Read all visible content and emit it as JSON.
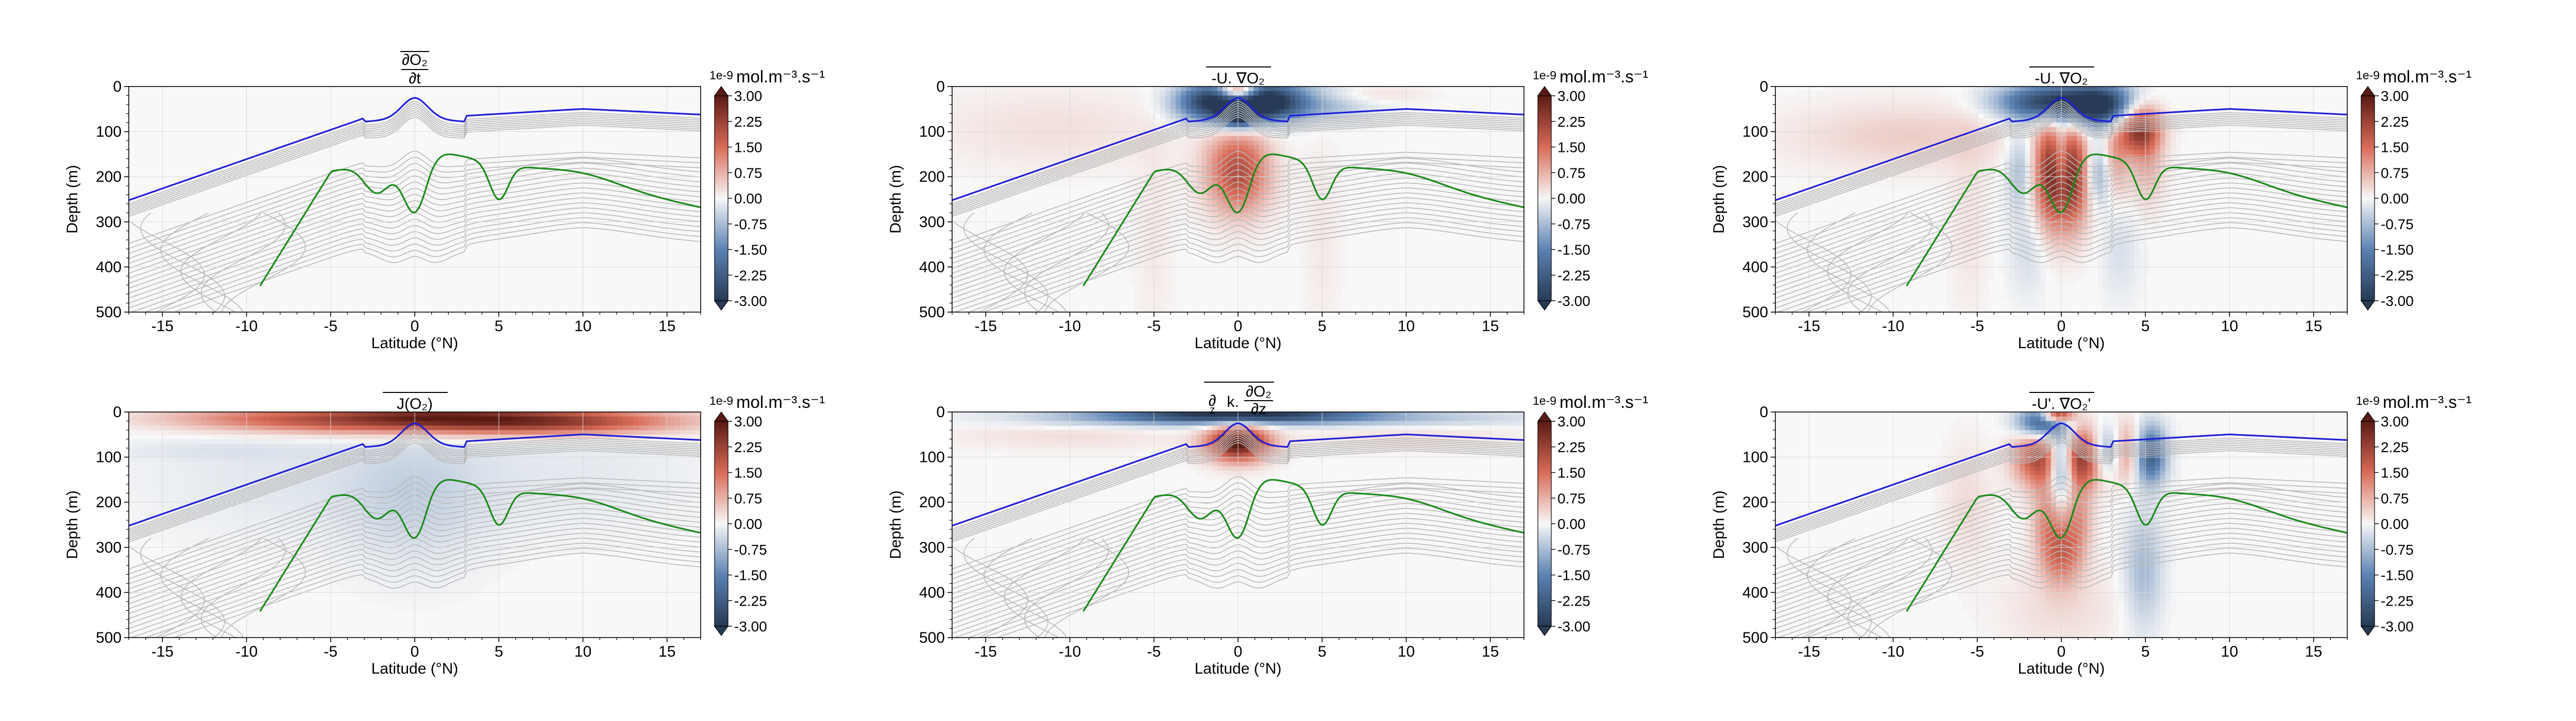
{
  "figure": {
    "colormap": {
      "neg_extreme": "#273a55",
      "neg": "#5b82b3",
      "neutral": "#f7f7f7",
      "pos": "#d96b58",
      "pos_extreme": "#5a1a14"
    },
    "contour_colors": {
      "oxycline": "#1f1fd6",
      "omz": "#1a8a1a",
      "isopleths": "#b8b8b8"
    }
  },
  "chart_data": [
    {
      "id": "dO2dt",
      "type": "heatmap",
      "row": 0,
      "col": 0,
      "title_parts": {
        "prefix": "",
        "top": "∂O₂",
        "bottom": "∂t",
        "overline": true
      },
      "xlabel": "Latitude (°N)",
      "ylabel": "Depth (m)",
      "xlim": [
        -17,
        17
      ],
      "ylim": [
        500,
        0
      ],
      "xticks": [
        "-15",
        "-10",
        "-5",
        "0",
        "5",
        "10",
        "15"
      ],
      "yticks": [
        "0",
        "100",
        "200",
        "300",
        "400",
        "500"
      ],
      "grid": true,
      "colorbar": {
        "label": "mol.m⁻³.s⁻¹",
        "exponent": "1e-9",
        "vmin": -3.0,
        "vmax": 3.0,
        "ticks": [
          "3.00",
          "2.25",
          "1.50",
          "0.75",
          "0.00",
          "-0.75",
          "-1.50",
          "-2.25",
          "-3.00"
        ]
      },
      "field_blobs": [
        {
          "x": 0,
          "y": 5,
          "sx": 3,
          "sy": 4,
          "v": 0.03
        }
      ]
    },
    {
      "id": "mean_adv",
      "type": "heatmap",
      "row": 0,
      "col": 1,
      "title_parts": {
        "prefix": "-",
        "text": "U. ∇O₂",
        "overline": true
      },
      "xlabel": "Latitude (°N)",
      "ylabel": "",
      "xlim": [
        -17,
        17
      ],
      "ylim": [
        500,
        0
      ],
      "xticks": [
        "-15",
        "-10",
        "-5",
        "0",
        "5",
        "10",
        "15"
      ],
      "yticks": [
        "0",
        "100",
        "200",
        "300",
        "400",
        "500"
      ],
      "grid": true,
      "colorbar": {
        "label": "mol.m⁻³.s⁻¹",
        "exponent": "1e-9",
        "vmin": -3.0,
        "vmax": 3.0,
        "ticks": [
          "3.00",
          "2.25",
          "1.50",
          "0.75",
          "0.00",
          "-0.75",
          "-1.50",
          "-2.25",
          "-3.00"
        ]
      },
      "field_blobs": [
        {
          "x": 0,
          "y": 10,
          "sx": 0.8,
          "sy": 15,
          "v": 3.0
        },
        {
          "x": -1.5,
          "y": 35,
          "sx": 1.5,
          "sy": 30,
          "v": -3.0
        },
        {
          "x": 1.5,
          "y": 35,
          "sx": 1.5,
          "sy": 30,
          "v": -3.0
        },
        {
          "x": 0,
          "y": 70,
          "sx": 0.8,
          "sy": 18,
          "v": -2.0
        },
        {
          "x": 0,
          "y": 190,
          "sx": 1.3,
          "sy": 65,
          "v": 2.0
        },
        {
          "x": 4.2,
          "y": 30,
          "sx": 2.5,
          "sy": 30,
          "v": -1.2
        },
        {
          "x": 6.5,
          "y": 18,
          "sx": 2.5,
          "sy": 16,
          "v": 0.6
        },
        {
          "x": -11,
          "y": 95,
          "sx": 5,
          "sy": 60,
          "v": 0.25
        },
        {
          "x": -5,
          "y": 330,
          "sx": 0.8,
          "sy": 170,
          "v": 0.15
        },
        {
          "x": 5,
          "y": 330,
          "sx": 0.8,
          "sy": 170,
          "v": 0.15
        }
      ]
    },
    {
      "id": "eddy_mean_adv",
      "type": "heatmap",
      "row": 0,
      "col": 2,
      "title_parts": {
        "prefix": "-",
        "text": "U. ∇O₂",
        "overline": true
      },
      "xlabel": "Latitude (°N)",
      "ylabel": "",
      "xlim": [
        -17,
        17
      ],
      "ylim": [
        500,
        0
      ],
      "xticks": [
        "-15",
        "-10",
        "-5",
        "0",
        "5",
        "10",
        "15"
      ],
      "yticks": [
        "0",
        "100",
        "200",
        "300",
        "400",
        "500"
      ],
      "grid": true,
      "colorbar": {
        "label": "mol.m⁻³.s⁻¹",
        "exponent": "1e-9",
        "vmin": -3.0,
        "vmax": 3.0,
        "ticks": [
          "3.00",
          "2.25",
          "1.50",
          "0.75",
          "0.00",
          "-0.75",
          "-1.50",
          "-2.25",
          "-3.00"
        ]
      },
      "field_blobs": [
        {
          "x": -0.5,
          "y": 35,
          "sx": 2.2,
          "sy": 28,
          "v": -3.0
        },
        {
          "x": 2.5,
          "y": 45,
          "sx": 1.5,
          "sy": 35,
          "v": -2.5
        },
        {
          "x": 4.6,
          "y": 90,
          "sx": 0.9,
          "sy": 40,
          "v": 2.6
        },
        {
          "x": -0.6,
          "y": 200,
          "sx": 0.8,
          "sy": 80,
          "v": 2.2
        },
        {
          "x": 0.6,
          "y": 200,
          "sx": 0.8,
          "sy": 80,
          "v": 2.2
        },
        {
          "x": 0,
          "y": 170,
          "sx": 0.35,
          "sy": 60,
          "v": -1.6
        },
        {
          "x": 2.3,
          "y": 190,
          "sx": 0.6,
          "sy": 50,
          "v": -1.3
        },
        {
          "x": 3.1,
          "y": 170,
          "sx": 0.6,
          "sy": 60,
          "v": 1.1
        },
        {
          "x": -2.4,
          "y": 180,
          "sx": 0.6,
          "sy": 60,
          "v": -0.8
        },
        {
          "x": 5.1,
          "y": 180,
          "sx": 0.7,
          "sy": 60,
          "v": 0.7
        },
        {
          "x": -9,
          "y": 110,
          "sx": 5,
          "sy": 50,
          "v": 0.45
        },
        {
          "x": -2,
          "y": 350,
          "sx": 0.8,
          "sy": 80,
          "v": -0.35
        },
        {
          "x": 3.5,
          "y": 360,
          "sx": 0.8,
          "sy": 80,
          "v": -0.3
        },
        {
          "x": -5.5,
          "y": 300,
          "sx": 0.8,
          "sy": 150,
          "v": 0.2
        }
      ]
    },
    {
      "id": "sources_sinks",
      "type": "heatmap",
      "row": 1,
      "col": 0,
      "title_parts": {
        "prefix": "",
        "text": "J(O₂)",
        "overline": true
      },
      "xlabel": "Latitude (°N)",
      "ylabel": "Depth (m)",
      "xlim": [
        -17,
        17
      ],
      "ylim": [
        500,
        0
      ],
      "xticks": [
        "-15",
        "-10",
        "-5",
        "0",
        "5",
        "10",
        "15"
      ],
      "yticks": [
        "0",
        "100",
        "200",
        "300",
        "400",
        "500"
      ],
      "grid": true,
      "colorbar": {
        "label": "mol.m⁻³.s⁻¹",
        "exponent": "1e-9",
        "vmin": -3.0,
        "vmax": 3.0,
        "ticks": [
          "3.00",
          "2.25",
          "1.50",
          "0.75",
          "0.00",
          "-0.75",
          "-1.50",
          "-2.25",
          "-3.00"
        ]
      },
      "field_blobs": [
        {
          "x": 1,
          "y": 22,
          "sx": 7,
          "sy": 20,
          "v": 2.2
        },
        {
          "x": 9.5,
          "y": 20,
          "sx": 5,
          "sy": 20,
          "v": 1.4
        },
        {
          "x": -9,
          "y": 12,
          "sx": 5,
          "sy": 18,
          "v": 0.9
        },
        {
          "x": 1,
          "y": 5,
          "sx": 4,
          "sy": 12,
          "v": 1.0
        },
        {
          "x": 0,
          "y": 190,
          "sx": 3,
          "sy": 110,
          "v": -0.4
        },
        {
          "x": -8,
          "y": 150,
          "sx": 6,
          "sy": 90,
          "v": -0.2
        },
        {
          "x": 9,
          "y": 140,
          "sx": 6,
          "sy": 90,
          "v": -0.18
        },
        {
          "x": -12,
          "y": 85,
          "sx": 5,
          "sy": 15,
          "v": -0.15
        }
      ]
    },
    {
      "id": "vertical_mixing",
      "type": "heatmap",
      "row": 1,
      "col": 1,
      "title_parts": {
        "prefix": "",
        "mix": true,
        "overline": true
      },
      "xlabel": "Latitude (°N)",
      "ylabel": "",
      "xlim": [
        -17,
        17
      ],
      "ylim": [
        500,
        0
      ],
      "xticks": [
        "-15",
        "-10",
        "-5",
        "0",
        "5",
        "10",
        "15"
      ],
      "yticks": [
        "0",
        "100",
        "200",
        "300",
        "400",
        "500"
      ],
      "grid": true,
      "colorbar": {
        "label": "mol.m⁻³.s⁻¹",
        "exponent": "1e-9",
        "vmin": -3.0,
        "vmax": 3.0,
        "ticks": [
          "3.00",
          "2.25",
          "1.50",
          "0.75",
          "0.00",
          "-0.75",
          "-1.50",
          "-2.25",
          "-3.00"
        ]
      },
      "field_blobs": [
        {
          "x": 0,
          "y": 5,
          "sx": 5,
          "sy": 12,
          "v": -2.6
        },
        {
          "x": 0,
          "y": 70,
          "sx": 1.3,
          "sy": 28,
          "v": 3.0
        },
        {
          "x": -6,
          "y": 15,
          "sx": 6,
          "sy": 15,
          "v": -0.8
        },
        {
          "x": 8,
          "y": 15,
          "sx": 7,
          "sy": 15,
          "v": -0.8
        },
        {
          "x": -10,
          "y": 45,
          "sx": 5,
          "sy": 25,
          "v": 0.3
        },
        {
          "x": 10,
          "y": 45,
          "sx": 5,
          "sy": 25,
          "v": 0.3
        }
      ]
    },
    {
      "id": "eddy_adv",
      "type": "heatmap",
      "row": 1,
      "col": 2,
      "title_parts": {
        "prefix": "-",
        "text": "U'. ∇O₂'",
        "overline": true
      },
      "xlabel": "Latitude (°N)",
      "ylabel": "",
      "xlim": [
        -17,
        17
      ],
      "ylim": [
        500,
        0
      ],
      "xticks": [
        "-15",
        "-10",
        "-5",
        "0",
        "5",
        "10",
        "15"
      ],
      "yticks": [
        "0",
        "100",
        "200",
        "300",
        "400",
        "500"
      ],
      "grid": true,
      "colorbar": {
        "label": "mol.m⁻³.s⁻¹",
        "exponent": "1e-9",
        "vmin": -3.0,
        "vmax": 3.0,
        "ticks": [
          "3.00",
          "2.25",
          "1.50",
          "0.75",
          "0.00",
          "-0.75",
          "-1.50",
          "-2.25",
          "-3.00"
        ]
      },
      "field_blobs": [
        {
          "x": -1.2,
          "y": 25,
          "sx": 1.0,
          "sy": 25,
          "v": -2.4
        },
        {
          "x": -0.2,
          "y": 8,
          "sx": 0.6,
          "sy": 10,
          "v": 3.0
        },
        {
          "x": 0,
          "y": 110,
          "sx": 0.5,
          "sy": 55,
          "v": -2.2
        },
        {
          "x": 1.4,
          "y": 100,
          "sx": 1.0,
          "sy": 45,
          "v": 2.6
        },
        {
          "x": -1.4,
          "y": 100,
          "sx": 1.0,
          "sy": 45,
          "v": 2.0
        },
        {
          "x": 2.7,
          "y": 90,
          "sx": 0.8,
          "sy": 40,
          "v": -2.0
        },
        {
          "x": 3.9,
          "y": 90,
          "sx": 0.7,
          "sy": 45,
          "v": 1.7
        },
        {
          "x": 5.2,
          "y": 95,
          "sx": 0.7,
          "sy": 45,
          "v": -2.4
        },
        {
          "x": 0,
          "y": 310,
          "sx": 0.8,
          "sy": 50,
          "v": 1.5
        },
        {
          "x": -0.9,
          "y": 230,
          "sx": 0.6,
          "sy": 60,
          "v": 1.0
        },
        {
          "x": 1.0,
          "y": 230,
          "sx": 0.6,
          "sy": 60,
          "v": 1.0
        },
        {
          "x": 4.9,
          "y": 350,
          "sx": 0.8,
          "sy": 90,
          "v": -0.8
        },
        {
          "x": -5.6,
          "y": 200,
          "sx": 1.0,
          "sy": 90,
          "v": 0.3
        },
        {
          "x": 0,
          "y": 430,
          "sx": 2.5,
          "sy": 70,
          "v": 0.3
        }
      ]
    }
  ]
}
